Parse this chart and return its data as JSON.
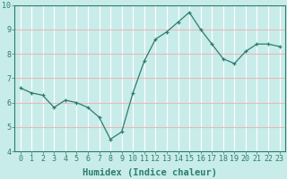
{
  "x": [
    0,
    1,
    2,
    3,
    4,
    5,
    6,
    7,
    8,
    9,
    10,
    11,
    12,
    13,
    14,
    15,
    16,
    17,
    18,
    19,
    20,
    21,
    22,
    23
  ],
  "y": [
    6.6,
    6.4,
    6.3,
    5.8,
    6.1,
    6.0,
    5.8,
    5.4,
    4.5,
    4.8,
    6.4,
    7.7,
    8.6,
    8.9,
    9.3,
    9.7,
    9.0,
    8.4,
    7.8,
    7.6,
    8.1,
    8.4,
    8.4,
    8.3
  ],
  "line_color": "#2d7d6e",
  "marker": "+",
  "marker_size": 3,
  "bg_color": "#c8ecea",
  "hgrid_color": "#e8b8b8",
  "vgrid_color": "#ffffff",
  "xlabel": "Humidex (Indice chaleur)",
  "xlabel_fontsize": 7.5,
  "tick_fontsize": 6,
  "ylim": [
    4,
    10
  ],
  "xlim": [
    -0.5,
    23.5
  ],
  "yticks": [
    4,
    5,
    6,
    7,
    8,
    9,
    10
  ],
  "xticks": [
    0,
    1,
    2,
    3,
    4,
    5,
    6,
    7,
    8,
    9,
    10,
    11,
    12,
    13,
    14,
    15,
    16,
    17,
    18,
    19,
    20,
    21,
    22,
    23
  ],
  "xtick_labels": [
    "0",
    "1",
    "2",
    "3",
    "4",
    "5",
    "6",
    "7",
    "8",
    "9",
    "10",
    "11",
    "12",
    "13",
    "14",
    "15",
    "16",
    "17",
    "18",
    "19",
    "20",
    "21",
    "22",
    "23"
  ]
}
